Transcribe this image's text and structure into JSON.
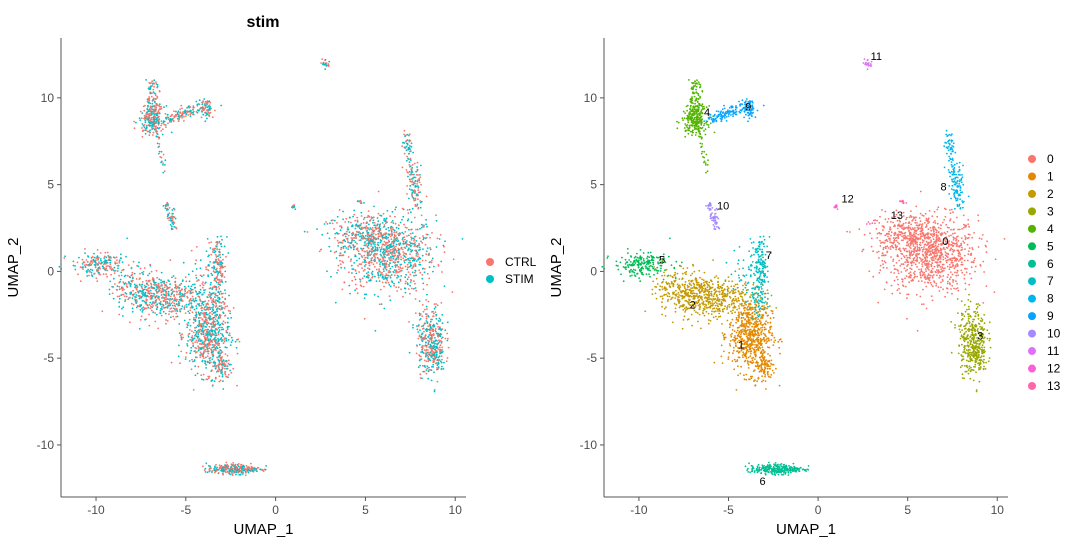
{
  "chart_data": [
    {
      "type": "scatter",
      "title": "stim",
      "xlabel": "UMAP_1",
      "ylabel": "UMAP_2",
      "xlim": [
        -11.95,
        10.6
      ],
      "ylim": [
        -13.0,
        13.45
      ],
      "xticks": [
        -10,
        -5,
        0,
        5,
        10
      ],
      "yticks": [
        -10,
        -5,
        0,
        5,
        10
      ],
      "grid": false,
      "legend_placement": "right",
      "color_by": "stim",
      "legend": [
        {
          "label": "CTRL",
          "color": "#F8766D"
        },
        {
          "label": "STIM",
          "color": "#00BFC4"
        }
      ]
    },
    {
      "type": "scatter",
      "title": "",
      "xlabel": "UMAP_1",
      "ylabel": "UMAP_2",
      "xlim": [
        -11.95,
        10.6
      ],
      "ylim": [
        -13.0,
        13.45
      ],
      "xticks": [
        -10,
        -5,
        0,
        5,
        10
      ],
      "yticks": [
        -10,
        -5,
        0,
        5,
        10
      ],
      "grid": false,
      "legend_placement": "right",
      "color_by": "cluster",
      "clusters": [
        {
          "label": "0",
          "color": "#F8766D",
          "label_pos": [
            7.1,
            1.76
          ],
          "blobs": [
            {
              "c": [
                6.3,
                1.0
              ],
              "s": [
                1.3,
                1.1
              ],
              "n": 900
            },
            {
              "c": [
                5.0,
                2.2
              ],
              "s": [
                0.9,
                0.6
              ],
              "n": 200
            },
            {
              "c": [
                4.0,
                1.7
              ],
              "s": [
                0.4,
                0.2
              ],
              "n": 30
            }
          ]
        },
        {
          "label": "1",
          "color": "#E38900",
          "label_pos": [
            -4.3,
            -4.2
          ],
          "blobs": [
            {
              "c": [
                -3.8,
                -3.6
              ],
              "s": [
                0.6,
                1.1
              ],
              "n": 600
            },
            {
              "c": [
                -3.0,
                -5.5
              ],
              "s": [
                0.3,
                0.5
              ],
              "n": 100
            }
          ]
        },
        {
          "label": "2",
          "color": "#C49A00",
          "label_pos": [
            -7.0,
            -1.9
          ],
          "blobs": [
            {
              "c": [
                -6.3,
                -1.5
              ],
              "s": [
                1.2,
                0.6
              ],
              "n": 500
            },
            {
              "c": [
                -7.5,
                -0.8
              ],
              "s": [
                0.8,
                0.5
              ],
              "n": 150
            }
          ]
        },
        {
          "label": "3",
          "color": "#99A800",
          "label_pos": [
            9.05,
            -3.7
          ],
          "blobs": [
            {
              "c": [
                8.6,
                -3.8
              ],
              "s": [
                0.4,
                1.0
              ],
              "n": 300
            },
            {
              "c": [
                8.9,
                -5.0
              ],
              "s": [
                0.3,
                0.5
              ],
              "n": 100
            }
          ]
        },
        {
          "label": "4",
          "color": "#53B400",
          "label_pos": [
            -6.2,
            9.2
          ],
          "blobs": [
            {
              "c": [
                -6.9,
                8.7
              ],
              "s": [
                0.35,
                0.4
              ],
              "n": 200
            }
          ],
          "segments": [
            {
              "a": [
                -6.9,
                11.0
              ],
              "b": [
                -6.8,
                9.0
              ],
              "w": 0.2,
              "n": 100
            },
            {
              "a": [
                -6.7,
                8.5
              ],
              "b": [
                -6.2,
                5.7
              ],
              "w": 0.1,
              "n": 30
            }
          ]
        },
        {
          "label": "5",
          "color": "#00BC56",
          "label_pos": [
            -8.7,
            0.7
          ],
          "blobs": [
            {
              "c": [
                -9.8,
                0.4
              ],
              "s": [
                0.8,
                0.35
              ],
              "n": 200
            }
          ]
        },
        {
          "label": "6",
          "color": "#00C094",
          "label_pos": [
            -3.1,
            -12.07
          ],
          "blobs": [
            {
              "c": [
                -2.6,
                -11.4
              ],
              "s": [
                0.6,
                0.15
              ],
              "n": 200
            },
            {
              "c": [
                -1.3,
                -11.4
              ],
              "s": [
                0.4,
                0.08
              ],
              "n": 60
            }
          ]
        },
        {
          "label": "7",
          "color": "#00BFC4",
          "label_pos": [
            -2.75,
            0.95
          ],
          "blobs": [
            {
              "c": [
                -4.0,
                0.0
              ],
              "s": [
                0.5,
                0.8
              ],
              "n": 50
            }
          ],
          "segments": [
            {
              "a": [
                -3.2,
                1.8
              ],
              "b": [
                -3.3,
                -2.5
              ],
              "w": 0.25,
              "n": 200
            }
          ]
        },
        {
          "label": "8",
          "color": "#00B6EB",
          "label_pos": [
            7.0,
            4.9
          ],
          "blobs": [
            {
              "c": [
                7.8,
                5.0
              ],
              "s": [
                0.2,
                0.5
              ],
              "n": 40
            }
          ],
          "segments": [
            {
              "a": [
                7.3,
                8.0
              ],
              "b": [
                7.8,
                3.5
              ],
              "w": 0.15,
              "n": 120
            }
          ]
        },
        {
          "label": "9",
          "color": "#06A4FF",
          "label_pos": [
            -3.9,
            9.5
          ],
          "blobs": [
            {
              "c": [
                -3.8,
                9.3
              ],
              "s": [
                0.2,
                0.3
              ],
              "n": 40
            }
          ],
          "segments": [
            {
              "a": [
                -6.0,
                8.7
              ],
              "b": [
                -3.6,
                9.7
              ],
              "w": 0.25,
              "n": 150
            }
          ]
        },
        {
          "label": "10",
          "color": "#A58AFF",
          "label_pos": [
            -5.3,
            3.8
          ],
          "segments": [
            {
              "a": [
                -6.1,
                4.0
              ],
              "b": [
                -5.6,
                2.4
              ],
              "w": 0.12,
              "n": 60
            }
          ]
        },
        {
          "label": "11",
          "color": "#DF70F8",
          "label_pos": [
            3.25,
            12.4
          ],
          "blobs": [
            {
              "c": [
                2.8,
                12.0
              ],
              "s": [
                0.1,
                0.15
              ],
              "n": 20
            }
          ]
        },
        {
          "label": "12",
          "color": "#FB61D7",
          "label_pos": [
            1.65,
            4.2
          ],
          "blobs": [
            {
              "c": [
                1.0,
                3.7
              ],
              "s": [
                0.06,
                0.08
              ],
              "n": 10
            }
          ]
        },
        {
          "label": "13",
          "color": "#FF66A8",
          "label_pos": [
            4.4,
            3.25
          ],
          "blobs": [
            {
              "c": [
                4.7,
                4.0
              ],
              "s": [
                0.1,
                0.05
              ],
              "n": 10
            },
            {
              "c": [
                2.9,
                2.8
              ],
              "s": [
                0.3,
                0.1
              ],
              "n": 6
            }
          ]
        }
      ]
    }
  ]
}
